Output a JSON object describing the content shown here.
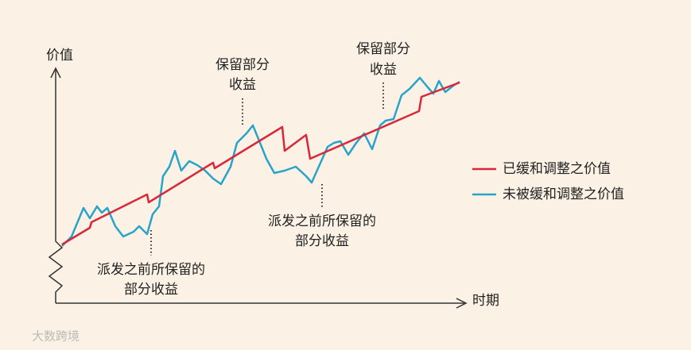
{
  "chart_data": {
    "type": "line",
    "y_label": "价值",
    "x_label": "时期",
    "xlim": [
      0,
      500
    ],
    "ylim": [
      0,
      292
    ],
    "series": [
      {
        "name": "已缓和调整之价值",
        "color": "#d8283a",
        "x": [
          0,
          35,
          37,
          107,
          109,
          190,
          192,
          277,
          280,
          307,
          312,
          449,
          452,
          500
        ],
        "values": [
          74,
          95,
          102,
          137,
          127,
          177,
          170,
          222,
          192,
          212,
          182,
          242,
          260,
          278
        ]
      },
      {
        "name": "未被缓和调整之价值",
        "color": "#2aa3c9",
        "x": [
          0,
          12,
          27,
          35,
          44,
          50,
          57,
          67,
          77,
          90,
          97,
          107,
          114,
          122,
          127,
          135,
          142,
          150,
          160,
          170,
          180,
          190,
          200,
          212,
          220,
          232,
          240,
          247,
          257,
          267,
          280,
          294,
          307,
          314,
          322,
          334,
          342,
          350,
          360,
          370,
          380,
          390,
          400,
          407,
          417,
          427,
          437,
          450,
          460,
          467,
          474,
          482,
          492,
          500
        ],
        "values": [
          72,
          84,
          120,
          107,
          122,
          114,
          120,
          97,
          84,
          90,
          97,
          87,
          112,
          122,
          160,
          172,
          192,
          167,
          179,
          174,
          167,
          157,
          150,
          172,
          202,
          214,
          224,
          207,
          182,
          164,
          167,
          172,
          160,
          152,
          170,
          197,
          202,
          204,
          187,
          202,
          214,
          194,
          224,
          230,
          232,
          262,
          270,
          284,
          272,
          264,
          280,
          266,
          274,
          279
        ]
      }
    ],
    "annotations": [
      {
        "lines": [
          "保留部分",
          "收益"
        ]
      },
      {
        "lines": [
          "保留部分",
          "收益"
        ]
      },
      {
        "lines": [
          "派发之前所保留的",
          "部分收益"
        ]
      },
      {
        "lines": [
          "派发之前所保留的",
          "部分收益"
        ]
      }
    ],
    "watermark": "大数跨境"
  }
}
